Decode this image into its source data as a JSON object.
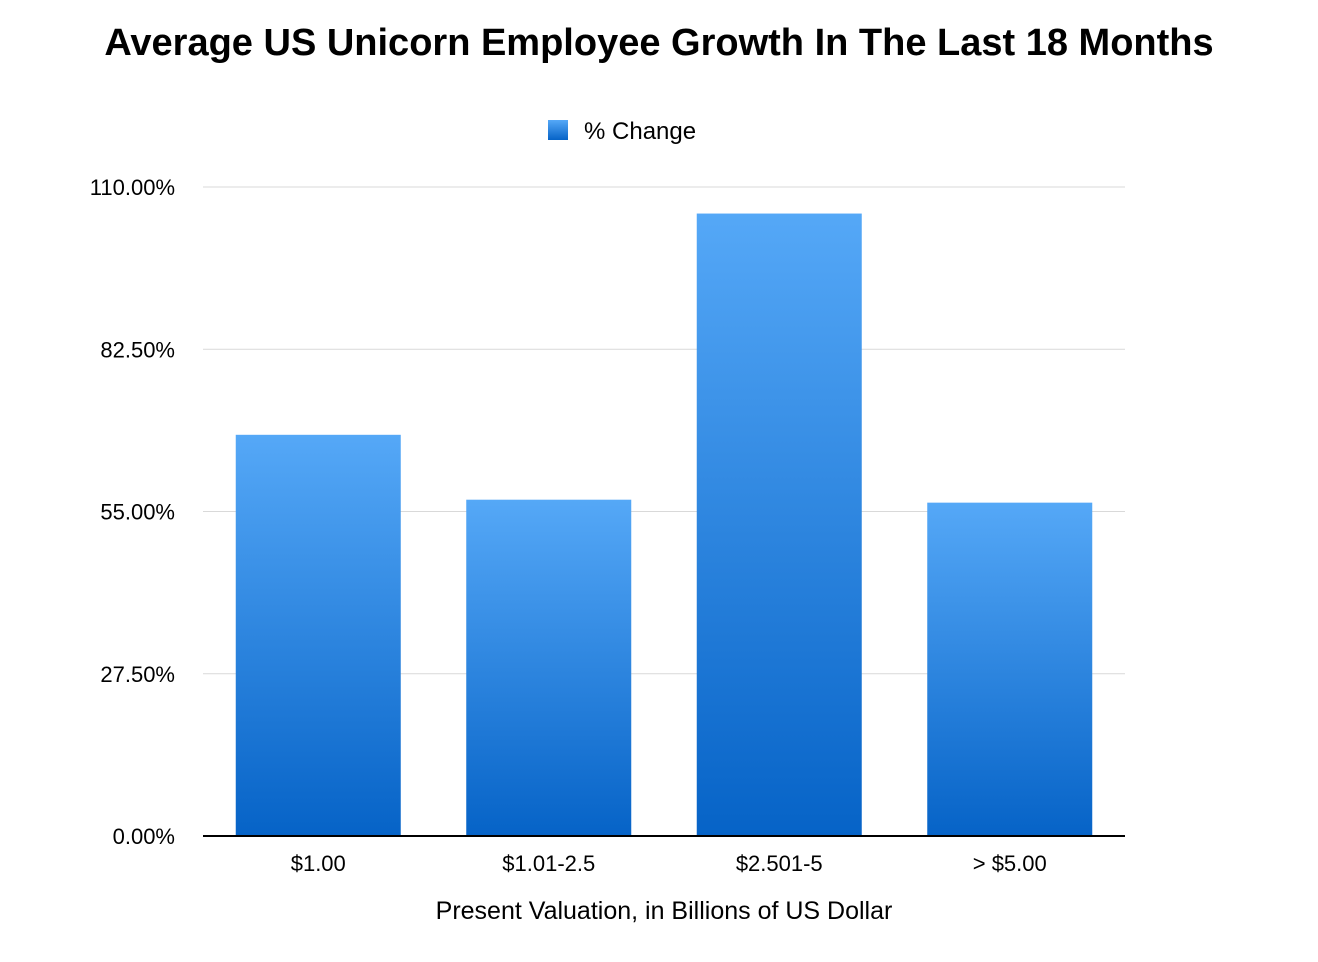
{
  "chart_data": {
    "type": "bar",
    "title": "Average US Unicorn Employee Growth In The Last 18 Months",
    "xlabel": "Present Valuation, in Billions of US Dollar",
    "ylabel": "",
    "categories": [
      "$1.00",
      "$1.01-2.5",
      "$2.501-5",
      "> $5.00"
    ],
    "series": [
      {
        "name": "% Change",
        "values": [
          68.0,
          57.0,
          105.5,
          56.5
        ],
        "color": "#2a8ae6"
      }
    ],
    "ylim": [
      0,
      110
    ],
    "yticks": [
      0,
      27.5,
      55,
      82.5,
      110
    ],
    "ytick_labels": [
      "0.00%",
      "27.50%",
      "55.00%",
      "82.50%",
      "110.00%"
    ],
    "grid": true,
    "legend_position": "top-center"
  }
}
